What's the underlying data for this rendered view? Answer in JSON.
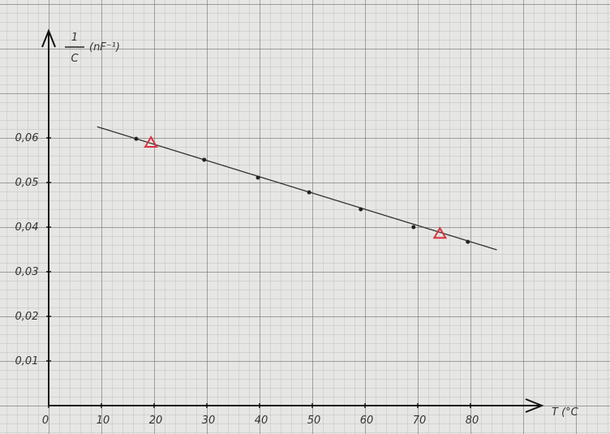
{
  "chart_data": {
    "type": "scatter",
    "ylabel": {
      "numerator": "1",
      "denominator": "C",
      "unit": "(nF⁻¹)"
    },
    "xlabel": "T (°C",
    "xlim": [
      0,
      90
    ],
    "ylim": [
      0,
      0.08
    ],
    "xticks": [
      0,
      10,
      20,
      30,
      40,
      50,
      60,
      70,
      80
    ],
    "yticks": [
      {
        "value": 0.01,
        "label": "0,01"
      },
      {
        "value": 0.02,
        "label": "0,02"
      },
      {
        "value": 0.03,
        "label": "0,03"
      },
      {
        "value": 0.04,
        "label": "0,04"
      },
      {
        "value": 0.05,
        "label": "0,05"
      },
      {
        "value": 0.06,
        "label": "0,06"
      }
    ],
    "series": [
      {
        "marker": "line",
        "color": "#333333",
        "x": [
          9.2,
          85
        ],
        "values": [
          0.0625,
          0.0349
        ]
      },
      {
        "marker": "dot",
        "color": "#222222",
        "x": [
          16.6,
          29.5,
          39.7,
          49.4,
          59.2,
          69.2,
          79.5
        ],
        "values": [
          0.0598,
          0.0551,
          0.0511,
          0.0478,
          0.044,
          0.04,
          0.0367
        ]
      },
      {
        "marker": "triangle",
        "color": "#d9333f",
        "x": [
          19.4,
          74.2
        ],
        "values": [
          0.0589,
          0.0385
        ]
      }
    ]
  }
}
